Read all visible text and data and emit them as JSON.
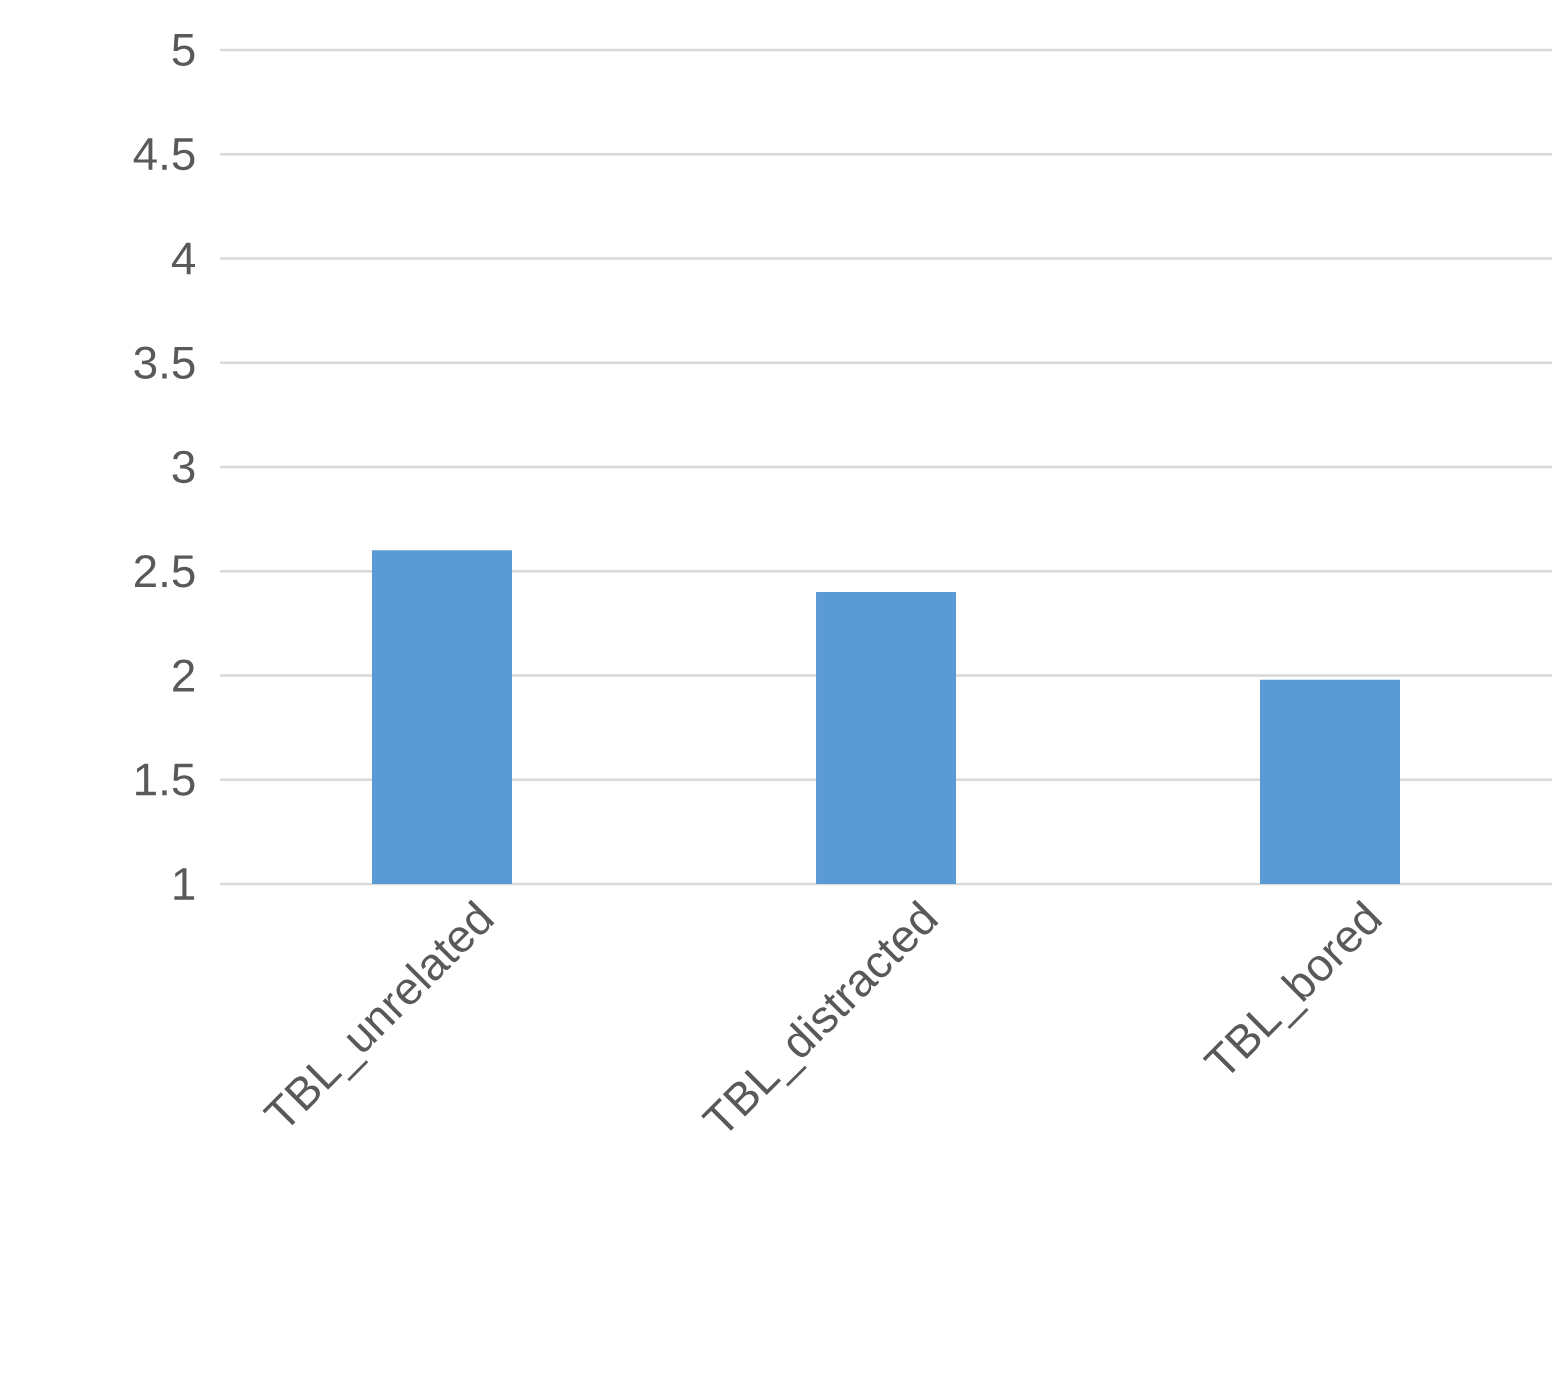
{
  "chart_data": {
    "type": "bar",
    "categories": [
      "TBL_unrelated",
      "TBL_distracted",
      "TBL_bored"
    ],
    "values": [
      2.6,
      2.4,
      1.98
    ],
    "color": "#5b9bd5",
    "ylim": [
      1,
      5
    ],
    "yticks": [
      1,
      1.5,
      2,
      2.5,
      3,
      3.5,
      4,
      4.5,
      5
    ],
    "grid": "y"
  }
}
